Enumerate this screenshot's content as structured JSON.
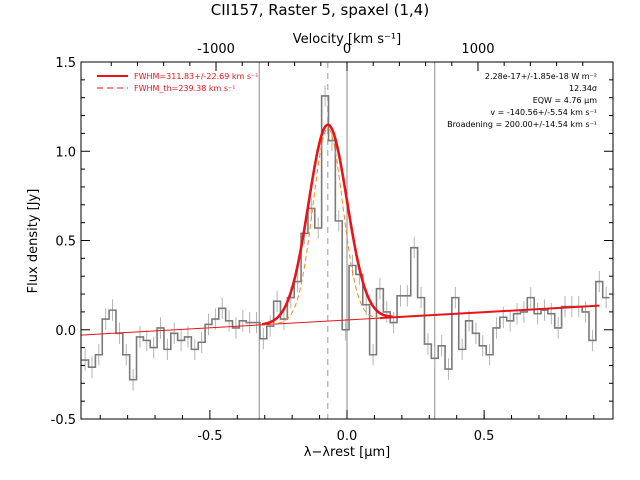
{
  "chart_data": {
    "type": "line",
    "title": "CII157, Raster 5, spaxel (1,4)",
    "xlabel": "λ−λrest [μm]",
    "ylabel": "Flux density [Jy]",
    "x2label": "Velocity [km s⁻¹]",
    "xlim": [
      -0.97,
      0.97
    ],
    "ylim": [
      -0.5,
      1.5
    ],
    "xticks": [
      "-0.5",
      "0.0",
      "0.5"
    ],
    "yticks": [
      "-0.5",
      "0.0",
      "0.5",
      "1.0",
      "1.5"
    ],
    "x2ticks": [
      "-1000",
      "0",
      "1000"
    ],
    "legend": {
      "placement": "top-left",
      "entries": [
        "FWHM=311.83+/-22.69 km s⁻¹",
        "FWHM_th=239.38 km s⁻¹"
      ]
    },
    "annotations": [
      "2.28e-17+/-1.85e-18 W m⁻²",
      "12.34σ",
      "EQW = 4.76 μm",
      "v = -140.56+/-5.54 km s⁻¹",
      "Broadening = 200.00+/-14.54 km s⁻¹"
    ],
    "vertical_lines": {
      "gray": [
        -0.32,
        0.0,
        0.32
      ],
      "dashed_center": -0.07
    },
    "series": [
      {
        "name": "data",
        "style": "steps",
        "color": "#7a7a7a",
        "x": [
          -0.955,
          -0.93,
          -0.905,
          -0.88,
          -0.855,
          -0.83,
          -0.805,
          -0.78,
          -0.755,
          -0.73,
          -0.705,
          -0.68,
          -0.655,
          -0.63,
          -0.605,
          -0.58,
          -0.555,
          -0.53,
          -0.505,
          -0.48,
          -0.455,
          -0.43,
          -0.405,
          -0.38,
          -0.355,
          -0.33,
          -0.305,
          -0.28,
          -0.255,
          -0.23,
          -0.205,
          -0.18,
          -0.155,
          -0.13,
          -0.105,
          -0.08,
          -0.055,
          -0.03,
          -0.005,
          0.02,
          0.045,
          0.07,
          0.095,
          0.12,
          0.145,
          0.17,
          0.195,
          0.22,
          0.245,
          0.27,
          0.295,
          0.32,
          0.345,
          0.37,
          0.395,
          0.42,
          0.445,
          0.47,
          0.495,
          0.52,
          0.545,
          0.57,
          0.595,
          0.62,
          0.645,
          0.67,
          0.695,
          0.72,
          0.745,
          0.77,
          0.795,
          0.82,
          0.845,
          0.87,
          0.895,
          0.92,
          0.945
        ],
        "values": [
          -0.17,
          -0.21,
          -0.14,
          0.06,
          0.11,
          -0.02,
          -0.14,
          -0.28,
          -0.04,
          -0.06,
          -0.1,
          0.01,
          -0.11,
          -0.02,
          -0.06,
          -0.04,
          -0.11,
          -0.07,
          0.03,
          0.06,
          0.12,
          0.05,
          0.01,
          0.05,
          0.04,
          0.04,
          -0.05,
          0.02,
          0.16,
          0.06,
          0.18,
          0.27,
          0.54,
          0.68,
          0.57,
          1.31,
          1.06,
          0.61,
          0.0,
          0.36,
          0.31,
          0.14,
          -0.14,
          0.23,
          0.1,
          0.04,
          0.19,
          0.19,
          0.46,
          0.18,
          -0.08,
          -0.16,
          -0.09,
          -0.22,
          0.18,
          -0.11,
          0.05,
          -0.02,
          -0.09,
          -0.14,
          0.01,
          0.07,
          0.05,
          0.09,
          0.1,
          0.18,
          0.09,
          0.11,
          0.09,
          0.01,
          0.13,
          0.13,
          0.13,
          0.1,
          -0.06,
          0.27,
          0.18
        ],
        "error": [
          0.06,
          0.06,
          0.06,
          0.06,
          0.06,
          0.06,
          0.06,
          0.06,
          0.06,
          0.06,
          0.06,
          0.06,
          0.06,
          0.06,
          0.06,
          0.06,
          0.06,
          0.06,
          0.06,
          0.06,
          0.06,
          0.06,
          0.06,
          0.06,
          0.06,
          0.06,
          0.06,
          0.06,
          0.06,
          0.06,
          0.06,
          0.06,
          0.06,
          0.06,
          0.06,
          0.06,
          0.06,
          0.06,
          0.06,
          0.06,
          0.06,
          0.06,
          0.06,
          0.06,
          0.06,
          0.06,
          0.06,
          0.06,
          0.06,
          0.06,
          0.06,
          0.06,
          0.06,
          0.06,
          0.06,
          0.06,
          0.06,
          0.06,
          0.06,
          0.06,
          0.06,
          0.06,
          0.06,
          0.06,
          0.06,
          0.06,
          0.06,
          0.06,
          0.06,
          0.06,
          0.06,
          0.06,
          0.06,
          0.06,
          0.06,
          0.06,
          0.06
        ]
      },
      {
        "name": "FWHM=311.83+/-22.69 km s⁻¹",
        "style": "gaussian",
        "color": "#e8141a",
        "baseline": [
          -0.97,
          -0.03,
          0.92,
          0.135
        ],
        "amp": 1.1,
        "center": -0.07,
        "fwhm_um": 0.165
      },
      {
        "name": "FWHM_th=239.38 km s⁻¹",
        "style": "gaussian-dashed",
        "color": "#f08a1e",
        "baseline": [
          -0.97,
          -0.03,
          0.92,
          0.135
        ],
        "amp": 1.08,
        "center": -0.07,
        "fwhm_um": 0.127
      }
    ]
  }
}
